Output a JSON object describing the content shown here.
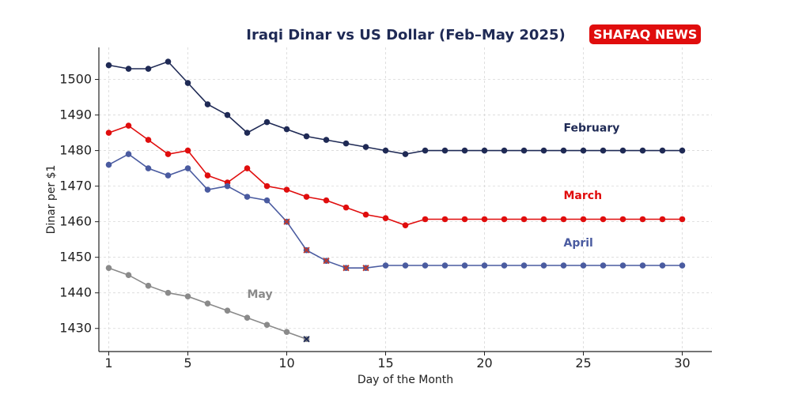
{
  "chart_data": {
    "type": "line",
    "title": "Iraqi Dinar vs US Dollar (Feb–May 2025)",
    "xlabel": "Day of the Month",
    "ylabel": "Dinar per $1",
    "xlim": [
      0.5,
      31.5
    ],
    "ylim": [
      1423.5,
      1509
    ],
    "xticks": [
      1,
      5,
      10,
      15,
      20,
      25,
      30
    ],
    "yticks": [
      1430,
      1440,
      1450,
      1460,
      1470,
      1480,
      1490,
      1500
    ],
    "grid": true,
    "series": [
      {
        "name": "February",
        "color": "#1f2a55",
        "x": [
          1,
          2,
          3,
          4,
          5,
          6,
          7,
          8,
          9,
          10,
          11,
          12,
          13,
          14,
          15,
          16,
          17,
          18,
          19,
          20,
          21,
          22,
          23,
          24,
          25,
          26,
          27,
          28,
          29,
          30
        ],
        "values": [
          1504,
          1503,
          1503,
          1505,
          1499,
          1493,
          1490,
          1485,
          1488,
          1486,
          1484,
          1483,
          1482,
          1481,
          1480,
          1479,
          1480,
          1480,
          1480,
          1480,
          1480,
          1480,
          1480,
          1480,
          1480,
          1480,
          1480,
          1480,
          1480,
          1480
        ]
      },
      {
        "name": "March",
        "color": "#e00d0d",
        "x": [
          1,
          2,
          3,
          4,
          5,
          6,
          7,
          8,
          9,
          10,
          11,
          12,
          13,
          14,
          15,
          16,
          17,
          18,
          19,
          20,
          21,
          22,
          23,
          24,
          25,
          26,
          27,
          28,
          29,
          30
        ],
        "values": [
          1485,
          1487,
          1483,
          1479,
          1480,
          1473,
          1471,
          1475,
          1470,
          1469,
          1467,
          1466,
          1464,
          1462,
          1461,
          1459,
          1460.7,
          1460.7,
          1460.7,
          1460.7,
          1460.7,
          1460.7,
          1460.7,
          1460.7,
          1460.7,
          1460.7,
          1460.7,
          1460.7,
          1460.7,
          1460.7
        ]
      },
      {
        "name": "April",
        "color": "#4a5ba0",
        "x": [
          1,
          2,
          3,
          4,
          5,
          6,
          7,
          8,
          9,
          10,
          11,
          12,
          13,
          14,
          15,
          16,
          17,
          18,
          19,
          20,
          21,
          22,
          23,
          24,
          25,
          26,
          27,
          28,
          29,
          30
        ],
        "values": [
          1476,
          1479,
          1475,
          1473,
          1475,
          1469,
          1470,
          1467,
          1466,
          1460,
          1452,
          1449,
          1447,
          1447,
          1447.7,
          1447.7,
          1447.7,
          1447.7,
          1447.7,
          1447.7,
          1447.7,
          1447.7,
          1447.7,
          1447.7,
          1447.7,
          1447.7,
          1447.7,
          1447.7,
          1447.7,
          1447.7
        ],
        "x_marked_days": [
          10,
          11,
          12,
          13,
          14
        ]
      },
      {
        "name": "May",
        "color": "#8a8a8a",
        "x": [
          1,
          2,
          3,
          4,
          5,
          6,
          7,
          8,
          9,
          10,
          11
        ],
        "values": [
          1447,
          1445,
          1442,
          1440,
          1439,
          1437,
          1435,
          1433,
          1431,
          1429,
          1427
        ],
        "x_marked_days": [
          11
        ]
      }
    ]
  },
  "badge": {
    "text": "SHAFAQ NEWS",
    "color": "#e00d0d"
  }
}
